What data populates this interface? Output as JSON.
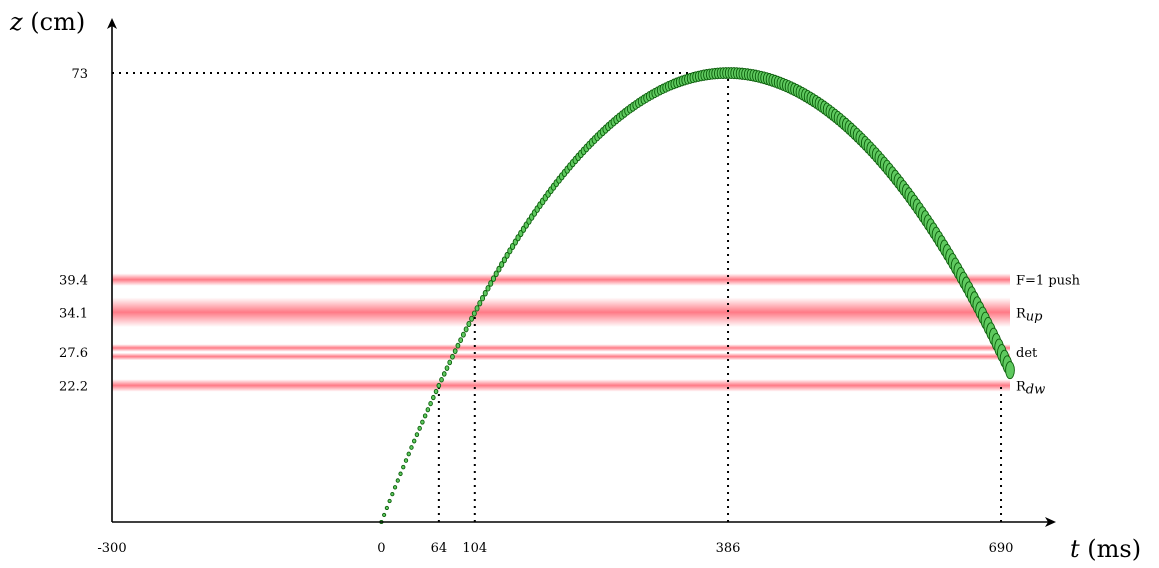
{
  "chart_data": {
    "type": "scatter",
    "xlabel": {
      "var": "t",
      "unit": " (ms)"
    },
    "ylabel": {
      "var": "z",
      "unit": " (cm)"
    },
    "xlim": [
      -300,
      700
    ],
    "ylim": [
      0,
      73
    ],
    "x_ticks": [
      {
        "value": -300,
        "label": "-300"
      },
      {
        "value": 0,
        "label": "0"
      },
      {
        "value": 64,
        "label": "64"
      },
      {
        "value": 104,
        "label": "104"
      },
      {
        "value": 386,
        "label": "386"
      },
      {
        "value": 690,
        "label": "690"
      }
    ],
    "y_ticks": [
      {
        "value": 73,
        "label": "73"
      },
      {
        "value": 39.4,
        "label": "39.4"
      },
      {
        "value": 34.1,
        "label": "34.1"
      },
      {
        "value": 27.6,
        "label": "27.6"
      },
      {
        "value": 22.2,
        "label": "22.2"
      }
    ],
    "bands": [
      {
        "label": "F=1 push",
        "sub": "",
        "z_center": 39.4,
        "half_width": 1.0
      },
      {
        "label": "R",
        "sub": "up",
        "z_center": 34.1,
        "half_width": 2.4
      },
      {
        "label": "det",
        "sub": "",
        "z_center": 27.6,
        "half_width": 0.6,
        "pair": true
      },
      {
        "label": "R",
        "sub": "dw",
        "z_center": 22.2,
        "half_width": 1.0
      }
    ],
    "trajectory": {
      "t_start": 0,
      "z_start": 0,
      "t_apex": 386,
      "z_apex": 73,
      "t_end": 700,
      "z_end": 19.5,
      "color": "#1e8c1e"
    },
    "guides": [
      {
        "t": 64,
        "z": 22.2
      },
      {
        "t": 104,
        "z": 34.1
      },
      {
        "t": 386,
        "z": 73
      },
      {
        "t": 690,
        "z": 22.2
      }
    ],
    "band_color": "#ff6b78"
  }
}
